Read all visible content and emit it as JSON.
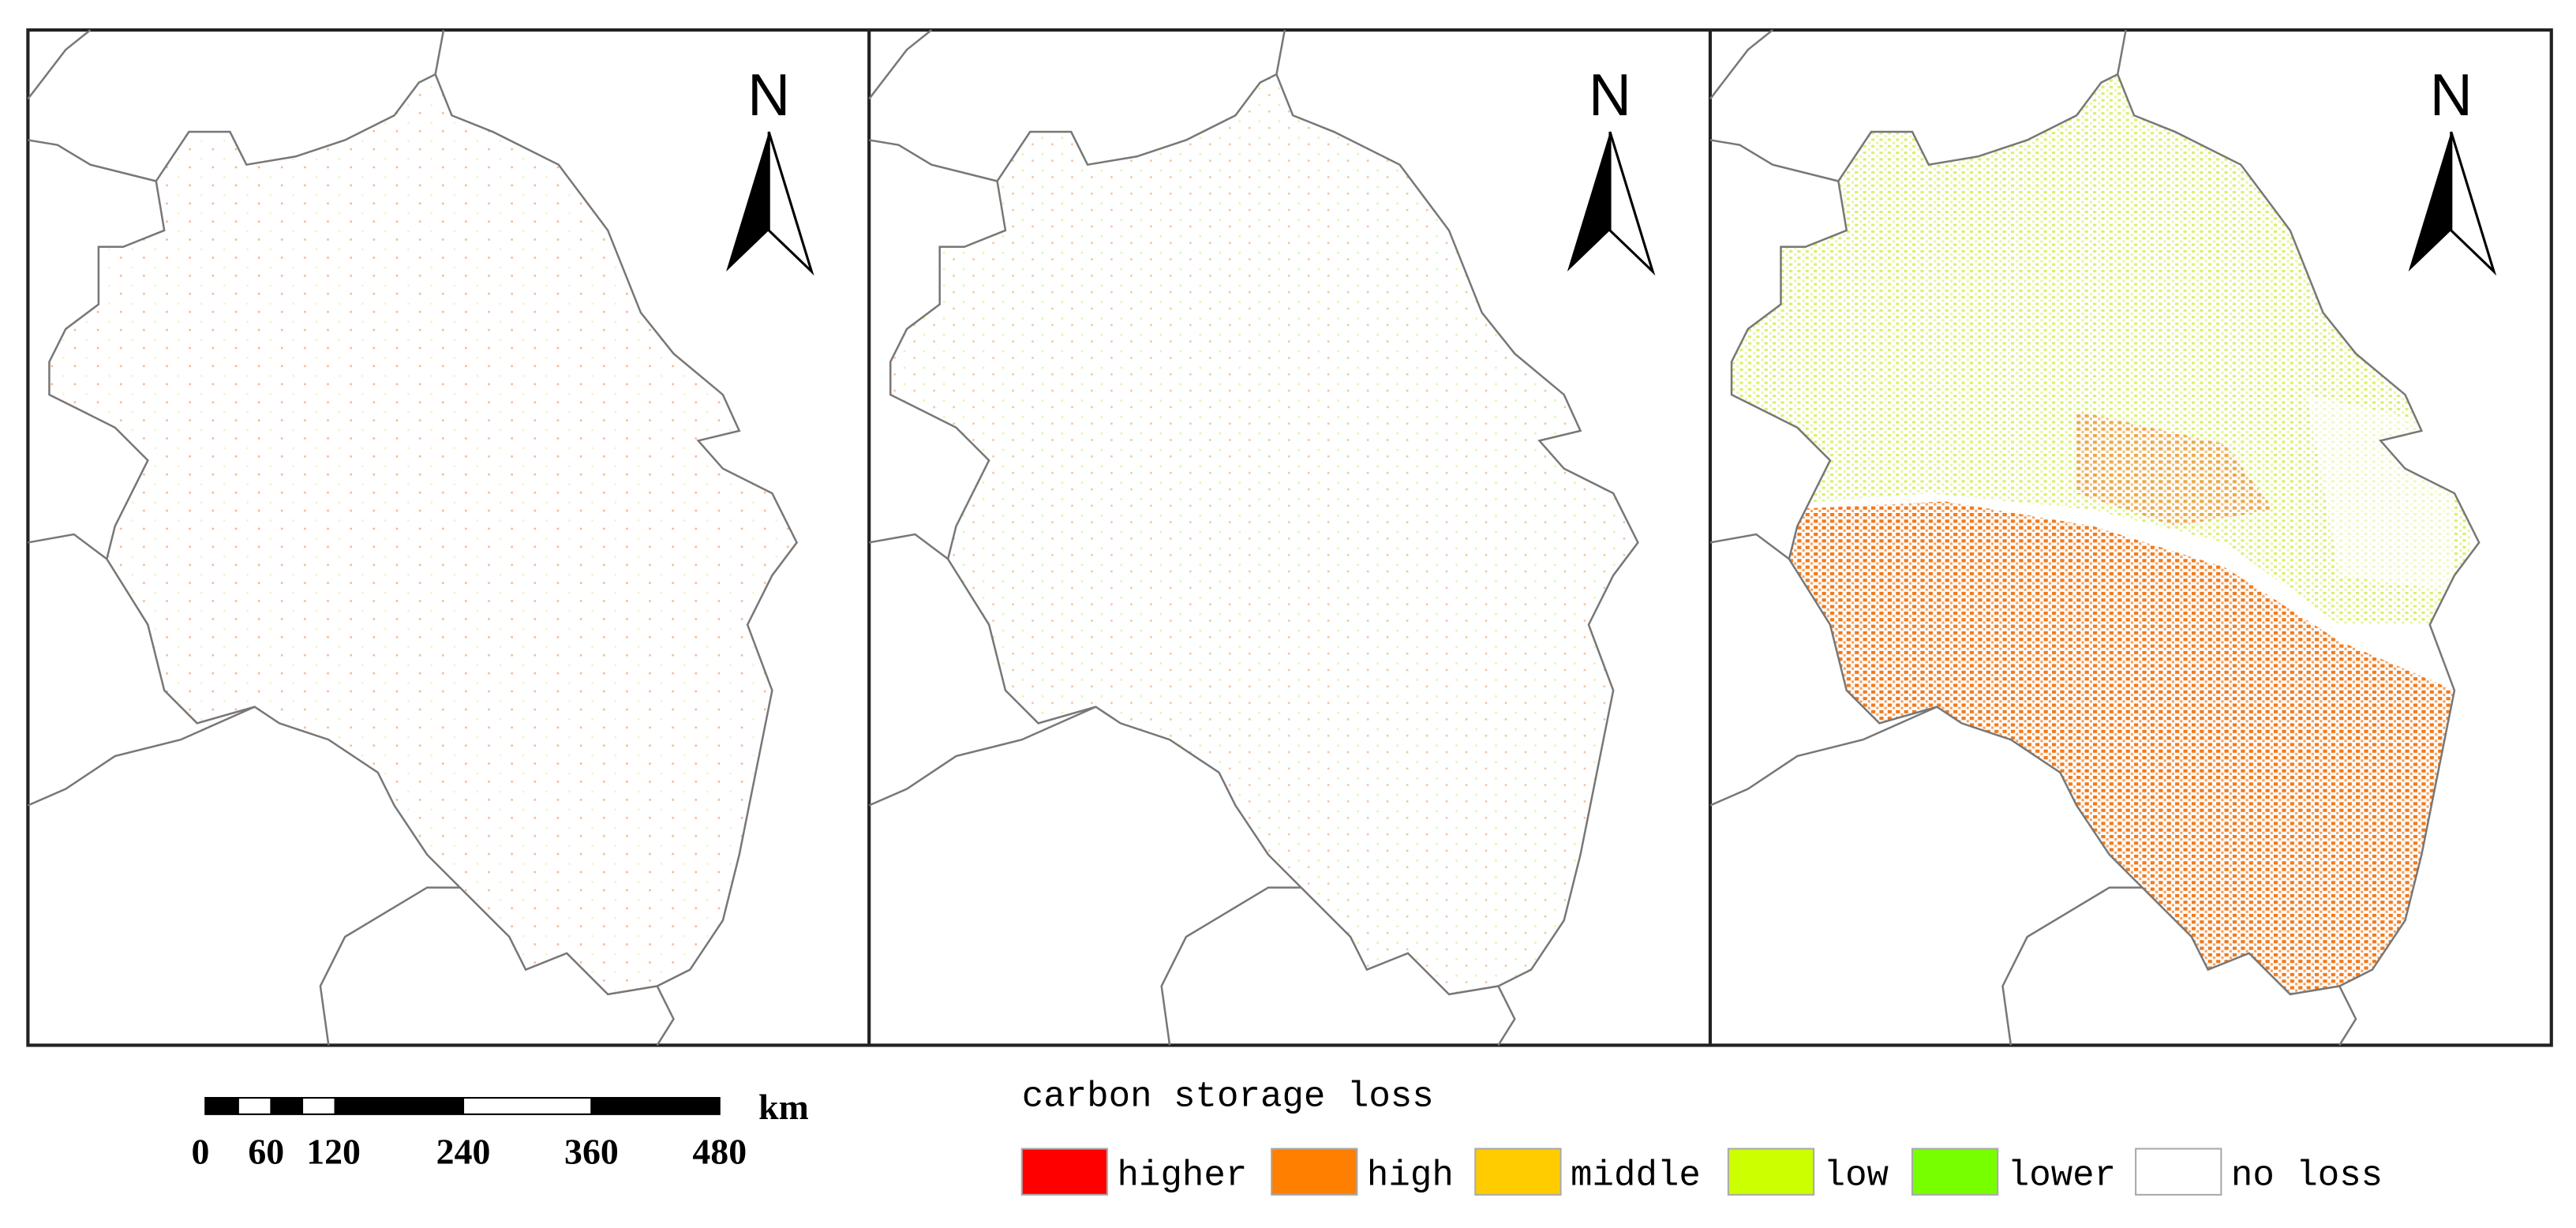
{
  "north_labels": [
    "N",
    "N",
    "N"
  ],
  "scale_bar": {
    "labels": [
      "0",
      "60",
      "120",
      "240",
      "360",
      "480"
    ],
    "unit": "km"
  },
  "legend": {
    "title": "carbon storage loss",
    "items": [
      {
        "label": "higher",
        "color": "#ff0000"
      },
      {
        "label": "high",
        "color": "#ff7f00"
      },
      {
        "label": "middle",
        "color": "#ffcc00"
      },
      {
        "label": "low",
        "color": "#ccff00"
      },
      {
        "label": "lower",
        "color": "#77ff00"
      },
      {
        "label": "no loss",
        "color": "#ffffff"
      }
    ]
  }
}
